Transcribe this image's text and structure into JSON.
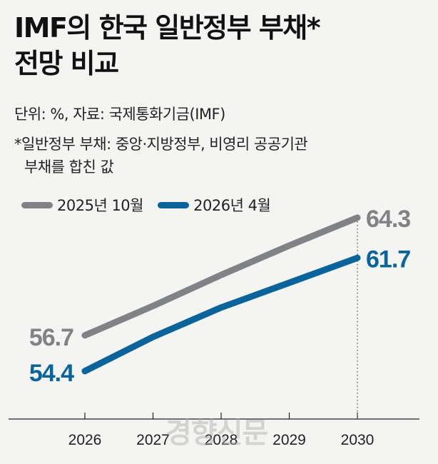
{
  "header": {
    "title_line1": "IMF의 한국 일반정부 부채*",
    "title_line2": "전망 비교",
    "unit_source": "단위: %, 자료: 국제통화기금(IMF)",
    "note_line1": "*일반정부 부채: 중앙·지방정부, 비영리 공공기관",
    "note_line2": "부채를 합친 값"
  },
  "legend": {
    "series_a": "2025년 10월",
    "series_b": "2026년 4월"
  },
  "watermark": "경향신문",
  "colors": {
    "series_a": "#808285",
    "series_b": "#08649b",
    "axis": "#222222"
  },
  "chart_data": {
    "type": "line",
    "title": "IMF의 한국 일반정부 부채* 전망 비교",
    "xlabel": "",
    "ylabel": "%",
    "x": [
      "2026",
      "2027",
      "2028",
      "2029",
      "2030"
    ],
    "series": [
      {
        "name": "2025년 10월",
        "values": [
          56.7,
          58.6,
          60.6,
          62.5,
          64.3
        ],
        "labels": {
          "start": "56.7",
          "end": "64.3"
        }
      },
      {
        "name": "2026년 4월",
        "values": [
          54.4,
          56.6,
          58.5,
          60.1,
          61.7
        ],
        "labels": {
          "start": "54.4",
          "end": "61.7"
        }
      }
    ],
    "ylim": [
      52.5,
      66.0
    ],
    "grid": false,
    "legend": "top-left"
  }
}
